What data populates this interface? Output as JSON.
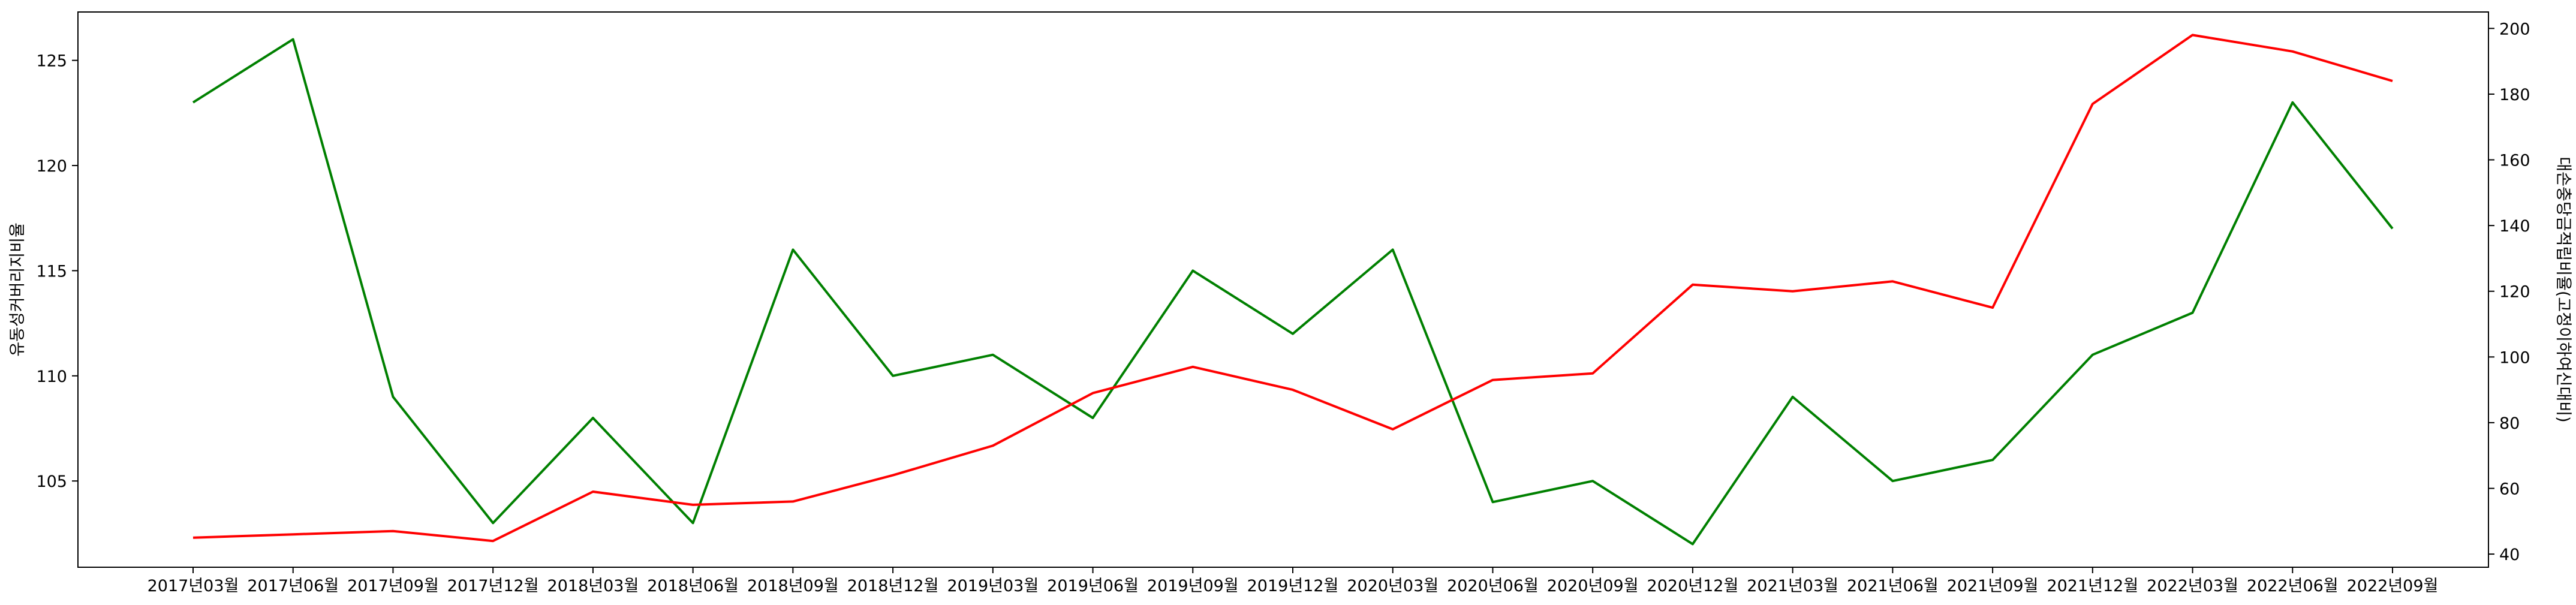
{
  "chart_data": {
    "type": "line",
    "title": "",
    "xlabel": "",
    "ylabel_left": "유동성커버리지비율",
    "ylabel_right": "대손충당금적립비율(고정이하여신대비)",
    "categories": [
      "2017년03월",
      "2017년06월",
      "2017년09월",
      "2017년12월",
      "2018년03월",
      "2018년06월",
      "2018년09월",
      "2018년12월",
      "2019년03월",
      "2019년06월",
      "2019년09월",
      "2019년12월",
      "2020년03월",
      "2020년06월",
      "2020년09월",
      "2020년12월",
      "2021년03월",
      "2021년06월",
      "2021년09월",
      "2021년12월",
      "2022년03월",
      "2022년06월",
      "2022년09월"
    ],
    "left_axis": {
      "lim": [
        100.9,
        127.3
      ],
      "ticks": [
        105,
        110,
        115,
        120,
        125
      ]
    },
    "right_axis": {
      "lim": [
        36.0,
        205.0
      ],
      "ticks": [
        40,
        60,
        80,
        100,
        120,
        140,
        160,
        180,
        200
      ]
    },
    "series": [
      {
        "axis": "left",
        "color": "#008000",
        "values": [
          123,
          126,
          109,
          103,
          108,
          103,
          116,
          110,
          111,
          108,
          115,
          112,
          116,
          104,
          105,
          102,
          109,
          105,
          106,
          111,
          113,
          123,
          117
        ]
      },
      {
        "axis": "right",
        "color": "#ff0000",
        "values": [
          45,
          46,
          47,
          44,
          59,
          55,
          56,
          64,
          73,
          89,
          97,
          90,
          78,
          93,
          95,
          122,
          120,
          123,
          115,
          177,
          198,
          193,
          184
        ]
      }
    ],
    "grid": false,
    "legend": "none"
  }
}
